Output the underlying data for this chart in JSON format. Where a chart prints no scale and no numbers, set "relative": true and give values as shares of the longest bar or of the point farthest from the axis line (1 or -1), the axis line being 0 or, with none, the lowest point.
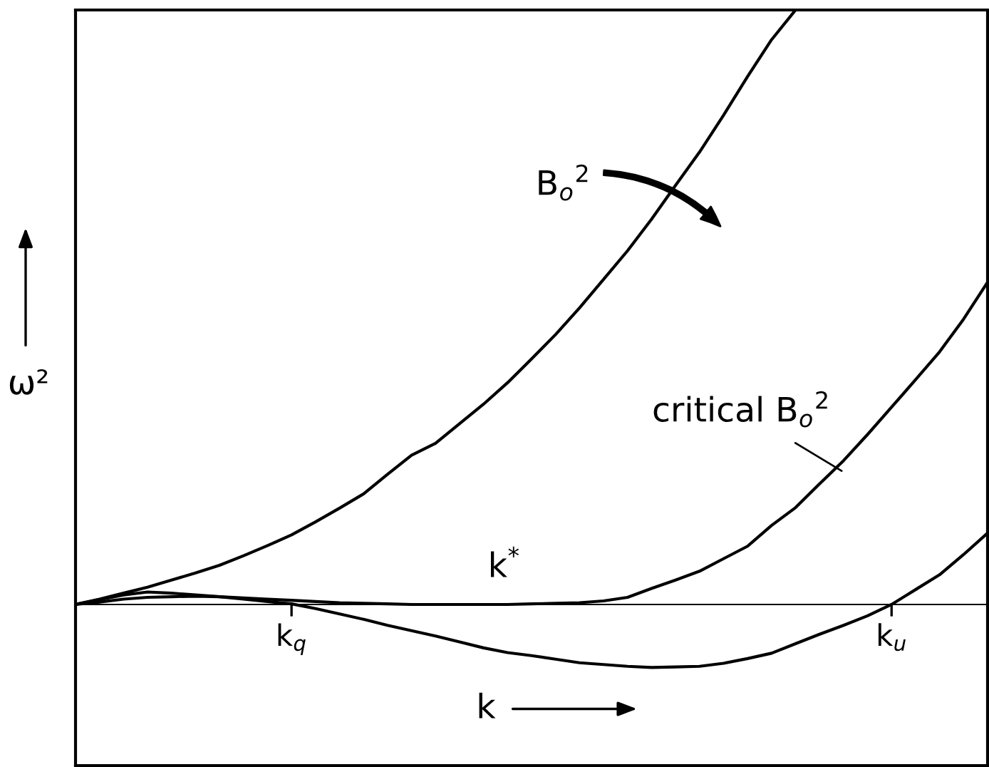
{
  "chart_data": {
    "type": "line",
    "relative": true,
    "xlabel": "k",
    "ylabel": "ω²",
    "categories": [
      null,
      null,
      null,
      null,
      null,
      null,
      null,
      null,
      null,
      "k$_{q}$",
      null,
      null,
      null,
      null,
      null,
      null,
      null,
      null,
      null,
      null,
      null,
      null,
      null,
      null,
      null,
      null,
      null,
      null,
      null,
      null,
      null,
      null,
      null,
      null,
      "k$_{u}$",
      null,
      null,
      null,
      null
    ],
    "series": [
      {
        "color": "#000000",
        "values": [
          0,
          0.009,
          0.019,
          0.029,
          0.041,
          0.053,
          0.066,
          0.082,
          0.099,
          0.117,
          0.139,
          0.162,
          0.186,
          0.219,
          0.251,
          0.271,
          0.304,
          0.337,
          0.373,
          0.413,
          0.454,
          0.499,
          0.547,
          0.595,
          0.648,
          0.705,
          0.761,
          0.823,
          0.888,
          0.95,
          1.0,
          null,
          null,
          null,
          null,
          null,
          null,
          null,
          null
        ]
      },
      {
        "color": "#000000",
        "values": [
          0,
          0.008,
          0.016,
          0.021,
          0.019,
          0.016,
          0.013,
          0.011,
          0.009,
          0.007,
          0.005,
          0.003,
          0.002,
          0.001,
          0,
          0,
          0,
          0,
          0,
          0.001,
          0.002,
          0.003,
          0.006,
          0.012,
          0.027,
          0.041,
          0.056,
          0.077,
          0.098,
          0.133,
          0.163,
          0.203,
          0.242,
          0.286,
          0.332,
          0.378,
          0.425,
          0.48,
          0.542
        ]
      },
      {
        "color": "#000000",
        "values": [
          0,
          0.004,
          0.009,
          0.012,
          0.013,
          0.014,
          0.013,
          0.009,
          0.005,
          0.001,
          -0.007,
          -0.016,
          -0.025,
          -0.035,
          -0.044,
          -0.053,
          -0.063,
          -0.073,
          -0.081,
          -0.086,
          -0.092,
          -0.098,
          -0.101,
          -0.104,
          -0.106,
          -0.105,
          -0.104,
          -0.099,
          -0.091,
          -0.082,
          -0.066,
          -0.05,
          -0.035,
          -0.019,
          0,
          0.025,
          0.05,
          0.084,
          0.12
        ]
      }
    ],
    "annotations": [
      "B$_{o}$$^{2}$",
      "critical B$_{o}$$^{2}$",
      "k$^{*}$"
    ],
    "legend": false
  }
}
